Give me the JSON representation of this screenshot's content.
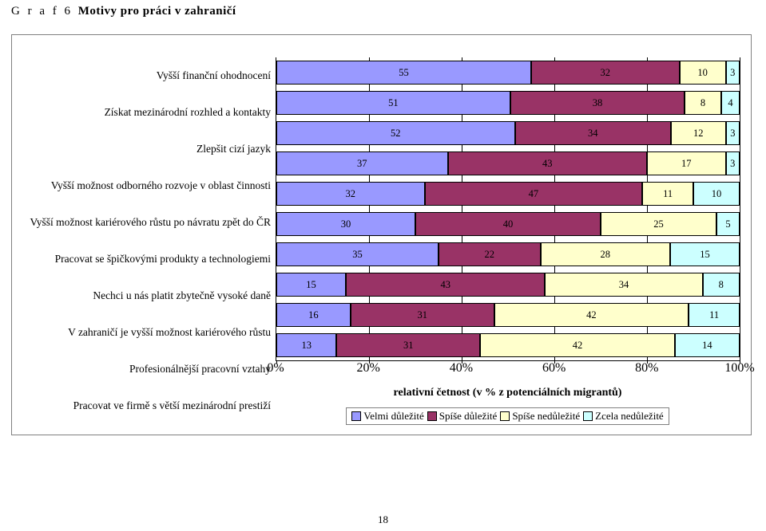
{
  "title_prefix": "G r a f  6 ",
  "title_main": "Motivy pro práci v zahraničí",
  "chart": {
    "type": "stacked-bar-horizontal-100",
    "background_color": "#ffffff",
    "grid_color": "#000000",
    "label_fontsize": 13.5,
    "value_fontsize": 12.5,
    "xlim": [
      0,
      100
    ],
    "xtick_step": 20,
    "xticks": [
      "0%",
      "20%",
      "40%",
      "60%",
      "80%",
      "100%"
    ],
    "x_caption": "relativní četnost (v % z potenciálních migrantů)",
    "series": [
      {
        "name": "Velmi důležité",
        "color": "#9999ff"
      },
      {
        "name": "Spíše důležité",
        "color": "#993366"
      },
      {
        "name": "Spíše nedůležité",
        "color": "#ffffcc"
      },
      {
        "name": "Zcela nedůležité",
        "color": "#ccffff"
      }
    ],
    "rows": [
      {
        "label": "Vyšší finanční ohodnocení",
        "values": [
          55,
          32,
          10,
          3
        ]
      },
      {
        "label": "Získat mezinárodní rozhled a kontakty",
        "values": [
          51,
          38,
          8,
          4
        ]
      },
      {
        "label": "Zlepšit cizí jazyk",
        "values": [
          52,
          34,
          12,
          3
        ]
      },
      {
        "label": "Vyšší možnost odborného rozvoje v oblast činnosti",
        "values": [
          37,
          43,
          17,
          3
        ]
      },
      {
        "label": "Vyšší možnost kariérového růstu po návratu zpět do ČR",
        "values": [
          32,
          47,
          11,
          10
        ]
      },
      {
        "label": "Pracovat se špičkovými produkty a technologiemi",
        "values": [
          30,
          40,
          25,
          5
        ]
      },
      {
        "label": "Nechci u nás platit zbytečně vysoké daně",
        "values": [
          35,
          22,
          28,
          15
        ]
      },
      {
        "label": "V zahraničí je vyšší možnost kariérového růstu",
        "values": [
          15,
          43,
          34,
          8
        ]
      },
      {
        "label": "Profesionálnější pracovní vztahy",
        "values": [
          16,
          31,
          42,
          11
        ]
      },
      {
        "label": "Pracovat ve firmě s větší mezinárodní prestiží",
        "values": [
          13,
          31,
          42,
          14
        ]
      }
    ]
  },
  "page_number": "18"
}
